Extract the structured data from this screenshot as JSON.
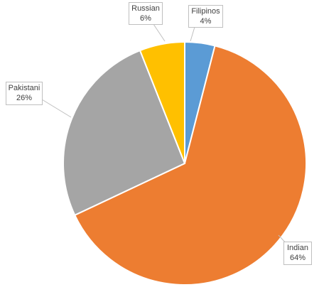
{
  "chart_data": {
    "type": "pie",
    "categories": [
      "Filipinos",
      "Indian",
      "Pakistani",
      "Russian"
    ],
    "values": [
      4,
      64,
      26,
      6
    ],
    "value_labels": [
      "4%",
      "64%",
      "26%",
      "6%"
    ],
    "colors": [
      "#5b9bd5",
      "#ed7d31",
      "#a5a5a5",
      "#ffc000"
    ]
  }
}
